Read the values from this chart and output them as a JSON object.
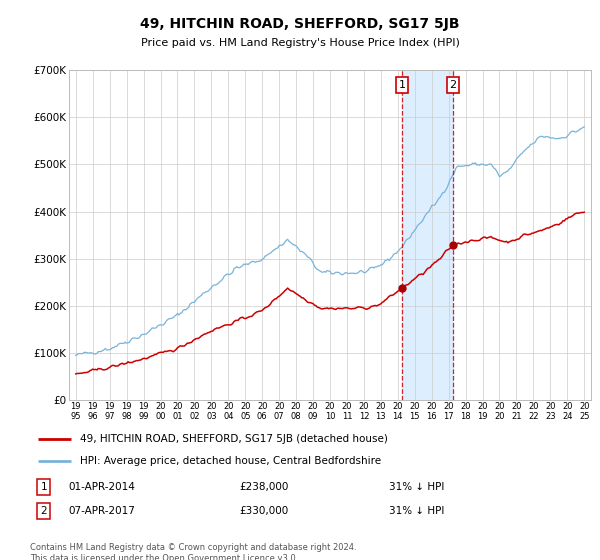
{
  "title": "49, HITCHIN ROAD, SHEFFORD, SG17 5JB",
  "subtitle": "Price paid vs. HM Land Registry's House Price Index (HPI)",
  "legend_line1": "49, HITCHIN ROAD, SHEFFORD, SG17 5JB (detached house)",
  "legend_line2": "HPI: Average price, detached house, Central Bedfordshire",
  "transaction1_date": "01-APR-2014",
  "transaction1_price": 238000,
  "transaction1_label": "31% ↓ HPI",
  "transaction2_date": "07-APR-2017",
  "transaction2_price": 330000,
  "transaction2_label": "31% ↓ HPI",
  "footer": "Contains HM Land Registry data © Crown copyright and database right 2024.\nThis data is licensed under the Open Government Licence v3.0.",
  "hpi_color": "#7ab3d9",
  "price_color": "#cc0000",
  "highlight_color": "#ddeeff",
  "marker_color": "#aa0000",
  "ylim_min": 0,
  "ylim_max": 700000,
  "ytick_step": 100000,
  "x_start_year": 1995,
  "x_end_year": 2025,
  "transaction1_year": 2014.25,
  "transaction2_year": 2017.25
}
